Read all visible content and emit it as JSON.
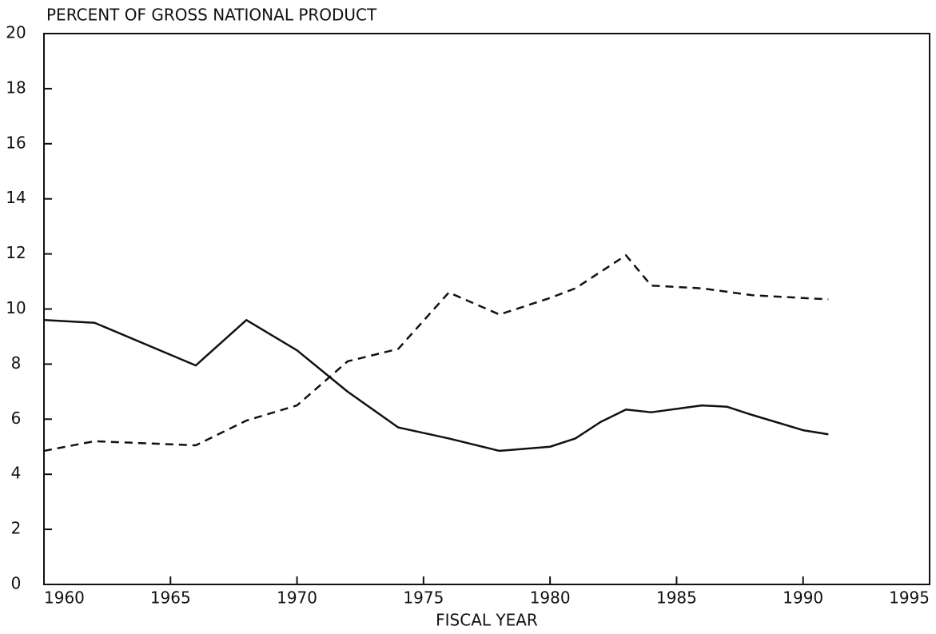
{
  "chart_data": {
    "type": "line",
    "title": "PERCENT OF GROSS NATIONAL PRODUCT",
    "xlabel": "FISCAL YEAR",
    "xlim": [
      1960,
      1995
    ],
    "xticks": [
      1960,
      1965,
      1970,
      1975,
      1980,
      1985,
      1990,
      1995
    ],
    "ylim": [
      0,
      20
    ],
    "yticks": [
      0,
      2,
      4,
      6,
      8,
      10,
      12,
      14,
      16,
      18,
      20
    ],
    "grid": false,
    "series": [
      {
        "color": "#111111",
        "style": "solid",
        "x": [
          1960,
          1962,
          1966,
          1968,
          1970,
          1972,
          1974,
          1976,
          1978,
          1980,
          1981,
          1982,
          1983,
          1984,
          1986,
          1987,
          1988,
          1990,
          1991
        ],
        "values": [
          9.6,
          9.5,
          7.95,
          9.6,
          8.5,
          7.0,
          5.7,
          5.3,
          4.85,
          5.0,
          5.3,
          5.9,
          6.35,
          6.25,
          6.5,
          6.45,
          6.15,
          5.6,
          5.45
        ]
      },
      {
        "color": "#111111",
        "style": "dashed",
        "x": [
          1960,
          1962,
          1966,
          1968,
          1970,
          1972,
          1974,
          1976,
          1978,
          1980,
          1981,
          1983,
          1984,
          1986,
          1988,
          1990,
          1991
        ],
        "values": [
          4.85,
          5.2,
          5.05,
          5.95,
          6.5,
          8.1,
          8.55,
          10.6,
          9.8,
          10.4,
          10.75,
          11.95,
          10.85,
          10.75,
          10.5,
          10.4,
          10.35
        ]
      }
    ]
  }
}
